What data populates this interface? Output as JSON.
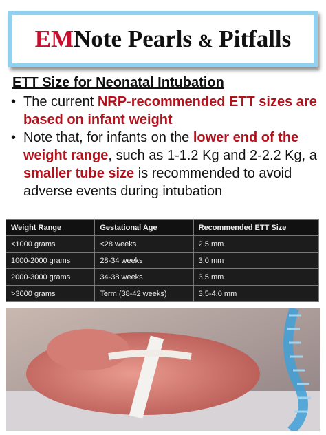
{
  "header": {
    "title": [
      {
        "text": "EM",
        "style": "red"
      },
      {
        "text": "Note Pearls ",
        "style": "plain"
      },
      {
        "text": "&",
        "style": "small"
      },
      {
        "text": " Pitfalls",
        "style": "plain"
      }
    ]
  },
  "heading": "ETT Size for Neonatal Intubation",
  "bullets": [
    {
      "segments": [
        {
          "text": "The current ",
          "highlight": false
        },
        {
          "text": "NRP-recommended ETT sizes are based on infant weight",
          "highlight": true
        }
      ]
    },
    {
      "segments": [
        {
          "text": "Note that, for infants on the ",
          "highlight": false
        },
        {
          "text": "lower end of the weight range",
          "highlight": true
        },
        {
          "text": ", such as 1-1.2 Kg and 2-2.2 Kg, a ",
          "highlight": false
        },
        {
          "text": "smaller tube size",
          "highlight": true
        },
        {
          "text": " is recommended to avoid adverse events during intubation",
          "highlight": false
        }
      ]
    }
  ],
  "table": {
    "headers": [
      "Weight Range",
      "Gestational Age",
      "Recommended ETT Size"
    ],
    "rows": [
      [
        "<1000 grams",
        "<28 weeks",
        "2.5 mm"
      ],
      [
        "1000-2000 grams",
        "28-34 weeks",
        "3.0 mm"
      ],
      [
        "2000-3000 grams",
        "34-38 weeks",
        "3.5 mm"
      ],
      [
        ">3000 grams",
        "Term (38-42 weeks)",
        "3.5-4.0 mm"
      ]
    ]
  }
}
